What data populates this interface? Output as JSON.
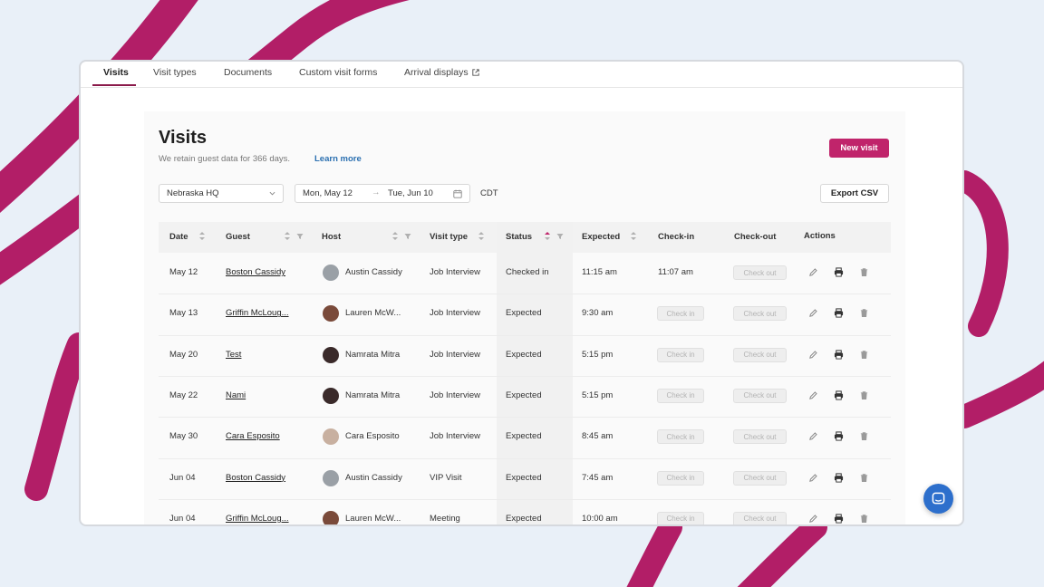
{
  "tabs": [
    "Visits",
    "Visit types",
    "Documents",
    "Custom visit forms",
    "Arrival displays"
  ],
  "page": {
    "title": "Visits",
    "subtitle": "We retain guest data for 366 days.",
    "learn_more": "Learn more",
    "new_visit": "New visit",
    "export_csv": "Export CSV"
  },
  "filters": {
    "location": "Nebraska HQ",
    "date_from": "Mon, May 12",
    "date_arrow": "→",
    "date_to": "Tue, Jun 10",
    "timezone": "CDT"
  },
  "columns": [
    "Date",
    "Guest",
    "Host",
    "Visit type",
    "Status",
    "Expected",
    "Check-in",
    "Check-out",
    "Actions"
  ],
  "buttons": {
    "check_in": "Check in",
    "check_out": "Check out"
  },
  "rows": [
    {
      "date": "May 12",
      "guest": "Boston Cassidy",
      "host": "Austin Cassidy",
      "visit_type": "Job Interview",
      "status": "Checked in",
      "expected": "11:15 am",
      "check_in": "11:07 am"
    },
    {
      "date": "May 13",
      "guest": "Griffin McLoug...",
      "host": "Lauren McW...",
      "visit_type": "Job Interview",
      "status": "Expected",
      "expected": "9:30 am",
      "check_in": ""
    },
    {
      "date": "May 20",
      "guest": "Test",
      "host": "Namrata Mitra",
      "visit_type": "Job Interview",
      "status": "Expected",
      "expected": "5:15 pm",
      "check_in": ""
    },
    {
      "date": "May 22",
      "guest": "Nami",
      "host": "Namrata Mitra",
      "visit_type": "Job Interview",
      "status": "Expected",
      "expected": "5:15 pm",
      "check_in": ""
    },
    {
      "date": "May 30",
      "guest": "Cara Esposito",
      "host": "Cara Esposito",
      "visit_type": "Job Interview",
      "status": "Expected",
      "expected": "8:45 am",
      "check_in": ""
    },
    {
      "date": "Jun 04",
      "guest": "Boston Cassidy",
      "host": "Austin Cassidy",
      "visit_type": "VIP Visit",
      "status": "Expected",
      "expected": "7:45 am",
      "check_in": ""
    },
    {
      "date": "Jun 04",
      "guest": "Griffin McLoug...",
      "host": "Lauren McW...",
      "visit_type": "Meeting",
      "status": "Expected",
      "expected": "10:00 am",
      "check_in": ""
    }
  ],
  "colors": {
    "accent": "#c0246b",
    "tab_underline": "#8a1a4a",
    "link": "#2a6fb0",
    "chat": "#2d6fcc",
    "background_stroke": "#b21e67"
  }
}
